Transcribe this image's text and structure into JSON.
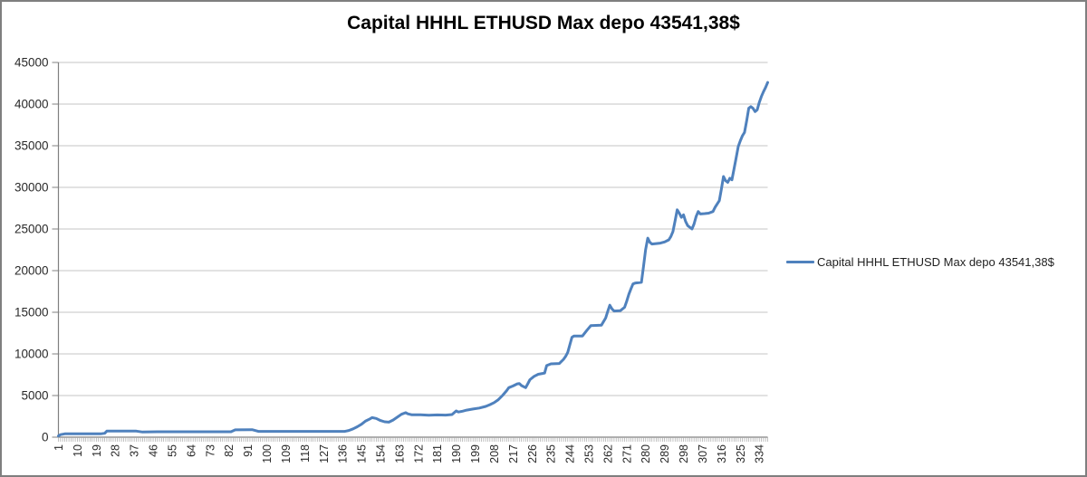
{
  "window": {
    "background": "#FFFFFF",
    "border_color": "#7F7F7F"
  },
  "chart_data": {
    "type": "line",
    "title": "Capital HHHL ETHUSD Max depo 43541,38$",
    "grid": {
      "horizontal": true,
      "color": "#C6C6C6"
    },
    "axis_color": "#808080",
    "tick_color": "#A8A8A8",
    "text_color": "#2A2A2A",
    "y_axis": {
      "min": 0,
      "max": 45000,
      "step": 5000,
      "tick_labels": [
        "0",
        "5000",
        "10000",
        "15000",
        "20000",
        "25000",
        "30000",
        "35000",
        "40000",
        "45000"
      ]
    },
    "x_axis": {
      "count": 338,
      "label_step": 9,
      "label_rotation": -90,
      "tick_labels": [
        "1",
        "10",
        "19",
        "28",
        "37",
        "46",
        "55",
        "64",
        "73",
        "82",
        "91",
        "100",
        "109",
        "118",
        "127",
        "136",
        "145",
        "154",
        "163",
        "172",
        "181",
        "190",
        "199",
        "208",
        "217",
        "226",
        "235",
        "244",
        "253",
        "262",
        "271",
        "280",
        "289",
        "298",
        "307",
        "316",
        "325",
        "334"
      ]
    },
    "legend": {
      "position": "right",
      "entries": [
        {
          "label": "Capital HHHL ETHUSD Max depo 43541,38$",
          "color": "#4F81BD"
        }
      ]
    },
    "series": [
      {
        "name": "Capital HHHL ETHUSD Max depo 43541,38$",
        "color": "#4F81BD",
        "points": [
          [
            1,
            150
          ],
          [
            2,
            300
          ],
          [
            4,
            400
          ],
          [
            21,
            400
          ],
          [
            23,
            470
          ],
          [
            24,
            730
          ],
          [
            38,
            730
          ],
          [
            41,
            620
          ],
          [
            48,
            650
          ],
          [
            83,
            650
          ],
          [
            85,
            880
          ],
          [
            93,
            900
          ],
          [
            96,
            700
          ],
          [
            137,
            700
          ],
          [
            139,
            800
          ],
          [
            141,
            1000
          ],
          [
            143,
            1250
          ],
          [
            145,
            1550
          ],
          [
            147,
            1950
          ],
          [
            149,
            2200
          ],
          [
            150,
            2350
          ],
          [
            152,
            2250
          ],
          [
            154,
            2000
          ],
          [
            156,
            1850
          ],
          [
            158,
            1800
          ],
          [
            160,
            2050
          ],
          [
            162,
            2400
          ],
          [
            164,
            2750
          ],
          [
            166,
            2950
          ],
          [
            167,
            2800
          ],
          [
            169,
            2680
          ],
          [
            173,
            2700
          ],
          [
            177,
            2630
          ],
          [
            181,
            2670
          ],
          [
            185,
            2650
          ],
          [
            188,
            2720
          ],
          [
            190,
            3150
          ],
          [
            191,
            3020
          ],
          [
            193,
            3120
          ],
          [
            195,
            3250
          ],
          [
            198,
            3380
          ],
          [
            201,
            3500
          ],
          [
            204,
            3700
          ],
          [
            206,
            3900
          ],
          [
            208,
            4150
          ],
          [
            210,
            4500
          ],
          [
            212,
            5000
          ],
          [
            214,
            5600
          ],
          [
            215,
            5950
          ],
          [
            217,
            6150
          ],
          [
            219,
            6400
          ],
          [
            220,
            6450
          ],
          [
            221,
            6200
          ],
          [
            223,
            5950
          ],
          [
            224,
            6400
          ],
          [
            225,
            6900
          ],
          [
            227,
            7300
          ],
          [
            229,
            7550
          ],
          [
            231,
            7650
          ],
          [
            232,
            7700
          ],
          [
            233,
            8600
          ],
          [
            235,
            8800
          ],
          [
            239,
            8850
          ],
          [
            241,
            9350
          ],
          [
            242,
            9700
          ],
          [
            243,
            10200
          ],
          [
            244,
            11100
          ],
          [
            245,
            12000
          ],
          [
            246,
            12150
          ],
          [
            250,
            12150
          ],
          [
            252,
            12800
          ],
          [
            254,
            13400
          ],
          [
            259,
            13450
          ],
          [
            261,
            14300
          ],
          [
            262,
            15100
          ],
          [
            263,
            15850
          ],
          [
            264,
            15400
          ],
          [
            265,
            15150
          ],
          [
            268,
            15200
          ],
          [
            270,
            15600
          ],
          [
            271,
            16300
          ],
          [
            272,
            17150
          ],
          [
            273,
            17800
          ],
          [
            274,
            18400
          ],
          [
            275,
            18500
          ],
          [
            278,
            18600
          ],
          [
            279,
            20500
          ],
          [
            280,
            22500
          ],
          [
            281,
            23900
          ],
          [
            282,
            23400
          ],
          [
            283,
            23200
          ],
          [
            287,
            23300
          ],
          [
            289,
            23450
          ],
          [
            291,
            23700
          ],
          [
            292,
            24100
          ],
          [
            293,
            24700
          ],
          [
            294,
            26000
          ],
          [
            295,
            27300
          ],
          [
            296,
            26900
          ],
          [
            297,
            26400
          ],
          [
            298,
            26700
          ],
          [
            299,
            25900
          ],
          [
            300,
            25400
          ],
          [
            302,
            25000
          ],
          [
            303,
            25600
          ],
          [
            304,
            26500
          ],
          [
            305,
            27100
          ],
          [
            306,
            26800
          ],
          [
            308,
            26850
          ],
          [
            310,
            26900
          ],
          [
            312,
            27100
          ],
          [
            313,
            27600
          ],
          [
            314,
            28000
          ],
          [
            315,
            28400
          ],
          [
            316,
            29800
          ],
          [
            317,
            31300
          ],
          [
            318,
            30800
          ],
          [
            319,
            30600
          ],
          [
            320,
            31100
          ],
          [
            321,
            30900
          ],
          [
            322,
            32200
          ],
          [
            323,
            33500
          ],
          [
            324,
            34900
          ],
          [
            325,
            35600
          ],
          [
            326,
            36200
          ],
          [
            327,
            36600
          ],
          [
            328,
            38000
          ],
          [
            329,
            39500
          ],
          [
            330,
            39700
          ],
          [
            331,
            39500
          ],
          [
            332,
            39100
          ],
          [
            333,
            39300
          ],
          [
            334,
            40200
          ],
          [
            335,
            40900
          ],
          [
            336,
            41500
          ],
          [
            337,
            42000
          ],
          [
            338,
            42600
          ]
        ]
      }
    ]
  }
}
